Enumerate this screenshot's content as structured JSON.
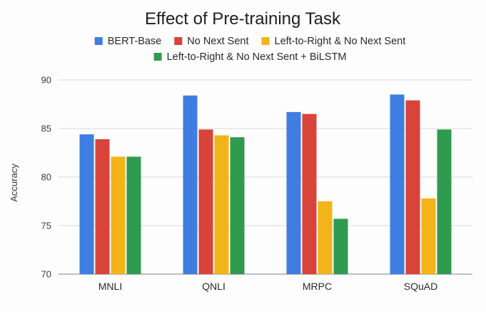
{
  "chart_data": {
    "type": "bar",
    "title": "Effect of Pre-training Task",
    "xlabel": "",
    "ylabel": "Accuracy",
    "categories": [
      "MNLI",
      "QNLI",
      "MRPC",
      "SQuAD"
    ],
    "ylim": [
      70,
      90
    ],
    "yticks": [
      70,
      75,
      80,
      85,
      90
    ],
    "grid": true,
    "legend_position": "top",
    "series": [
      {
        "name": "BERT-Base",
        "color": "#3f7de0",
        "values": [
          84.4,
          88.4,
          86.7,
          88.5
        ]
      },
      {
        "name": "No Next Sent",
        "color": "#d8433a",
        "values": [
          83.9,
          84.9,
          86.5,
          87.9
        ]
      },
      {
        "name": "Left-to-Right & No Next Sent",
        "color": "#f2b418",
        "values": [
          82.1,
          84.3,
          77.5,
          77.8
        ]
      },
      {
        "name": "Left-to-Right & No Next Sent + BiLSTM",
        "color": "#2f9b4f",
        "values": [
          82.1,
          84.1,
          75.7,
          84.9
        ]
      }
    ]
  }
}
